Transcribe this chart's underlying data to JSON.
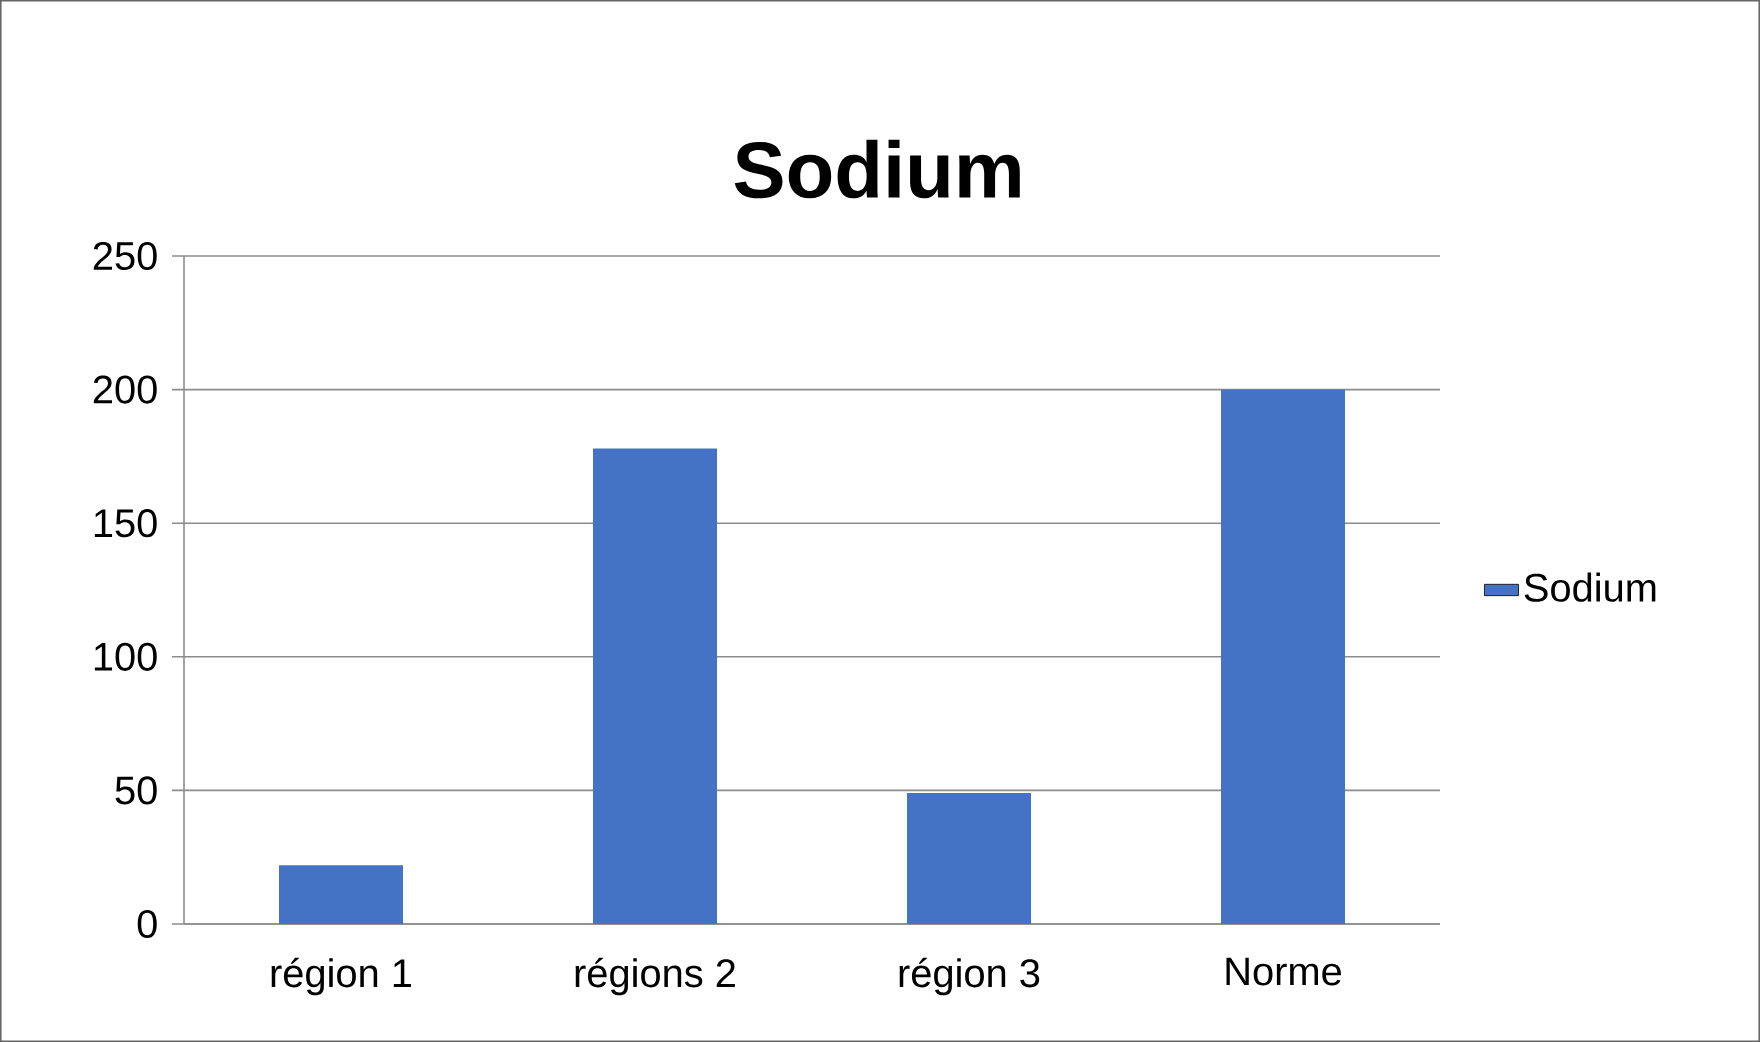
{
  "chart_data": {
    "type": "bar",
    "title": "Sodium",
    "categories": [
      "région 1",
      "régions 2",
      "région 3",
      "Norme"
    ],
    "series": [
      {
        "name": "Sodium",
        "color": "#4472c4",
        "values": [
          22,
          178,
          49,
          200
        ]
      }
    ],
    "ylim": [
      0,
      250
    ],
    "yticks": [
      0,
      50,
      100,
      150,
      200,
      250
    ],
    "grid": "y",
    "legend": "right"
  }
}
